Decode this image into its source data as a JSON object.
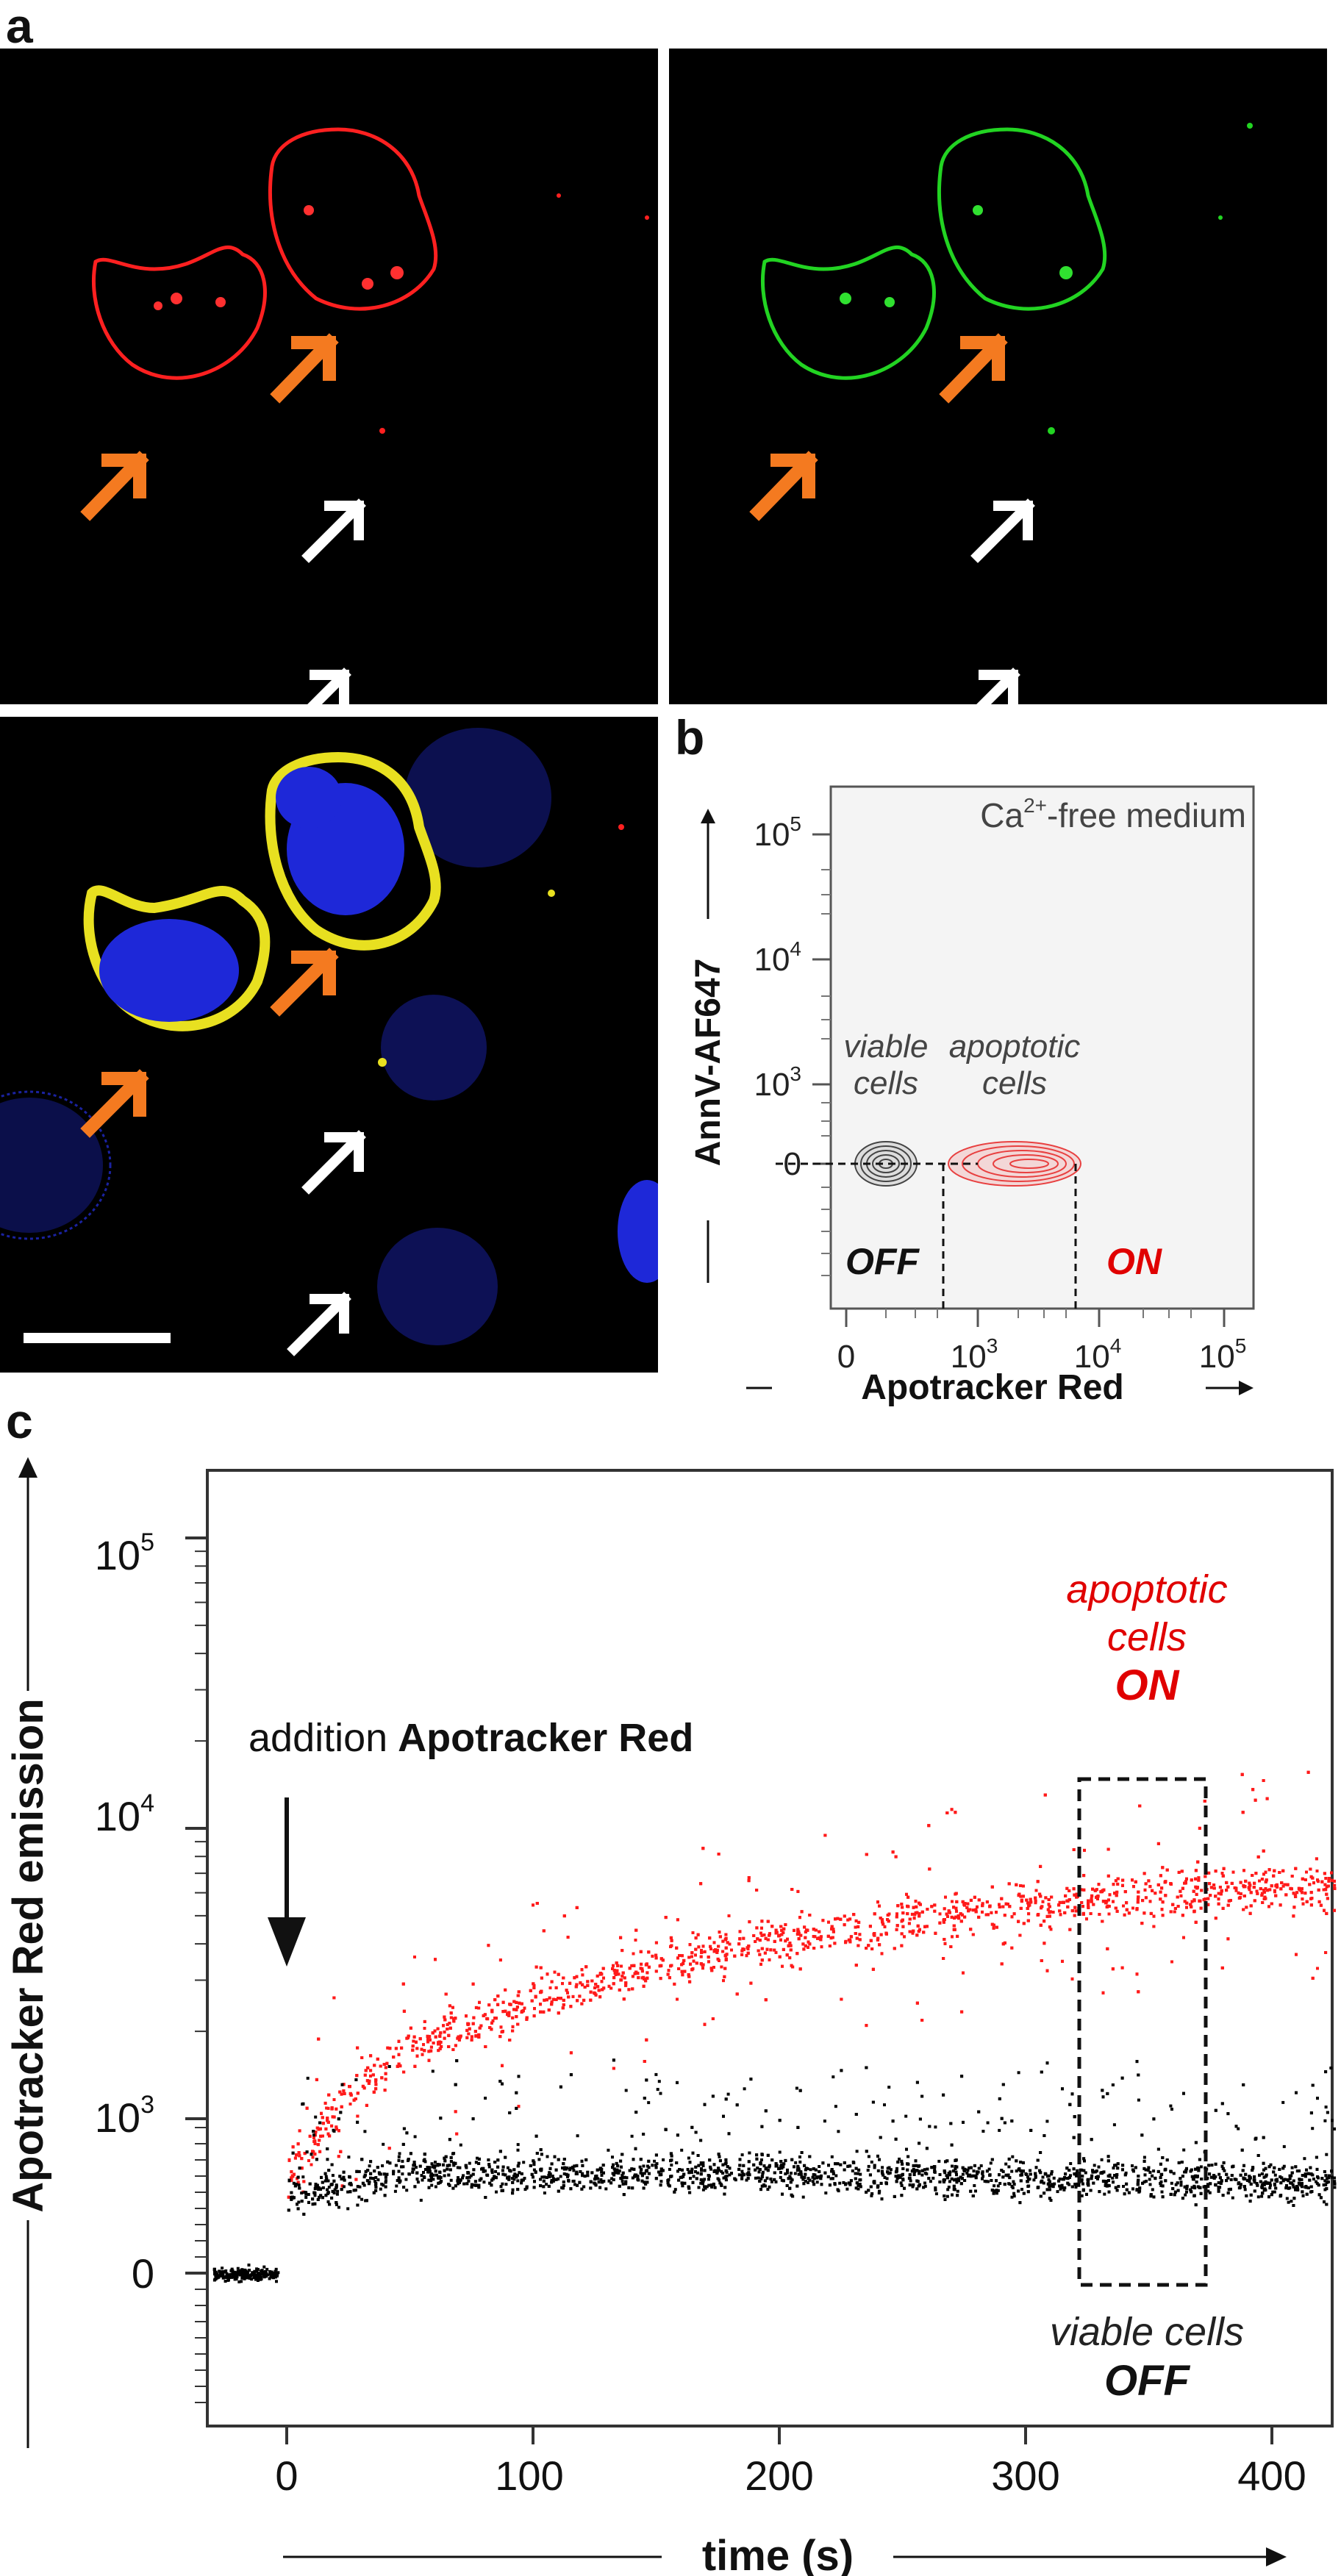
{
  "figure": {
    "panel_a_label": "a",
    "panel_b_label": "b",
    "panel_c_label": "c",
    "colors": {
      "red_channel": "#ff1a1a",
      "green_channel": "#22d422",
      "merge_yellow": "#e8e020",
      "nucleus_blue": "#1e28d8",
      "arrow_apoptotic": "#f47a20",
      "arrow_viable": "#ffffff",
      "viable_gray": "#555555",
      "apoptotic_red": "#e00000"
    }
  },
  "panel_b": {
    "annotation": "Ca",
    "annotation_sup": "2+",
    "annotation_rest": "-free medium",
    "xlabel": "Apotracker Red",
    "ylabel": "AnnV-AF647",
    "x_ticks": [
      "0",
      "10",
      "10",
      "10"
    ],
    "x_tick_sups": [
      "",
      "3",
      "4",
      "5"
    ],
    "y_ticks": [
      "10",
      "10",
      "10",
      "0"
    ],
    "y_tick_sups": [
      "5",
      "4",
      "3",
      ""
    ],
    "viable_label_1": "viable",
    "viable_label_2": "cells",
    "apoptotic_label_1": "apoptotic",
    "apoptotic_label_2": "cells",
    "off_label": "OFF",
    "on_label": "ON"
  },
  "panel_c": {
    "ylabel": "Apotracker Red emission",
    "xlabel": "time (s)",
    "addition_text": "addition",
    "addition_bold": "Apotracker Red",
    "apoptotic_label_1": "apoptotic",
    "apoptotic_label_2": "cells",
    "apoptotic_label_3": "ON",
    "viable_label_1": "viable cells",
    "viable_label_2": "OFF"
  },
  "chart_data": {
    "type": "scatter",
    "xlabel": "time (s)",
    "ylabel": "Apotracker Red emission",
    "x_ticks": [
      "0",
      "100",
      "200",
      "300",
      "400"
    ],
    "y_ticks": [
      "10",
      "10",
      "10",
      "0"
    ],
    "y_tick_sups": [
      "5",
      "4",
      "3",
      ""
    ],
    "xlim": [
      -30,
      425
    ],
    "yscale": "biexponential",
    "series": [
      {
        "name": "apoptotic cells",
        "color": "#ff1a1a",
        "x": [
          0,
          20,
          50,
          100,
          150,
          200,
          250,
          300,
          350,
          400,
          420
        ],
        "y": [
          600,
          1100,
          1700,
          2600,
          3400,
          4100,
          4800,
          5500,
          5900,
          6300,
          6400
        ]
      },
      {
        "name": "viable cells",
        "color": "#000000",
        "x": [
          -30,
          -5,
          0,
          50,
          100,
          200,
          300,
          400,
          420
        ],
        "y": [
          0,
          0,
          500,
          650,
          650,
          650,
          620,
          600,
          600
        ]
      }
    ]
  }
}
